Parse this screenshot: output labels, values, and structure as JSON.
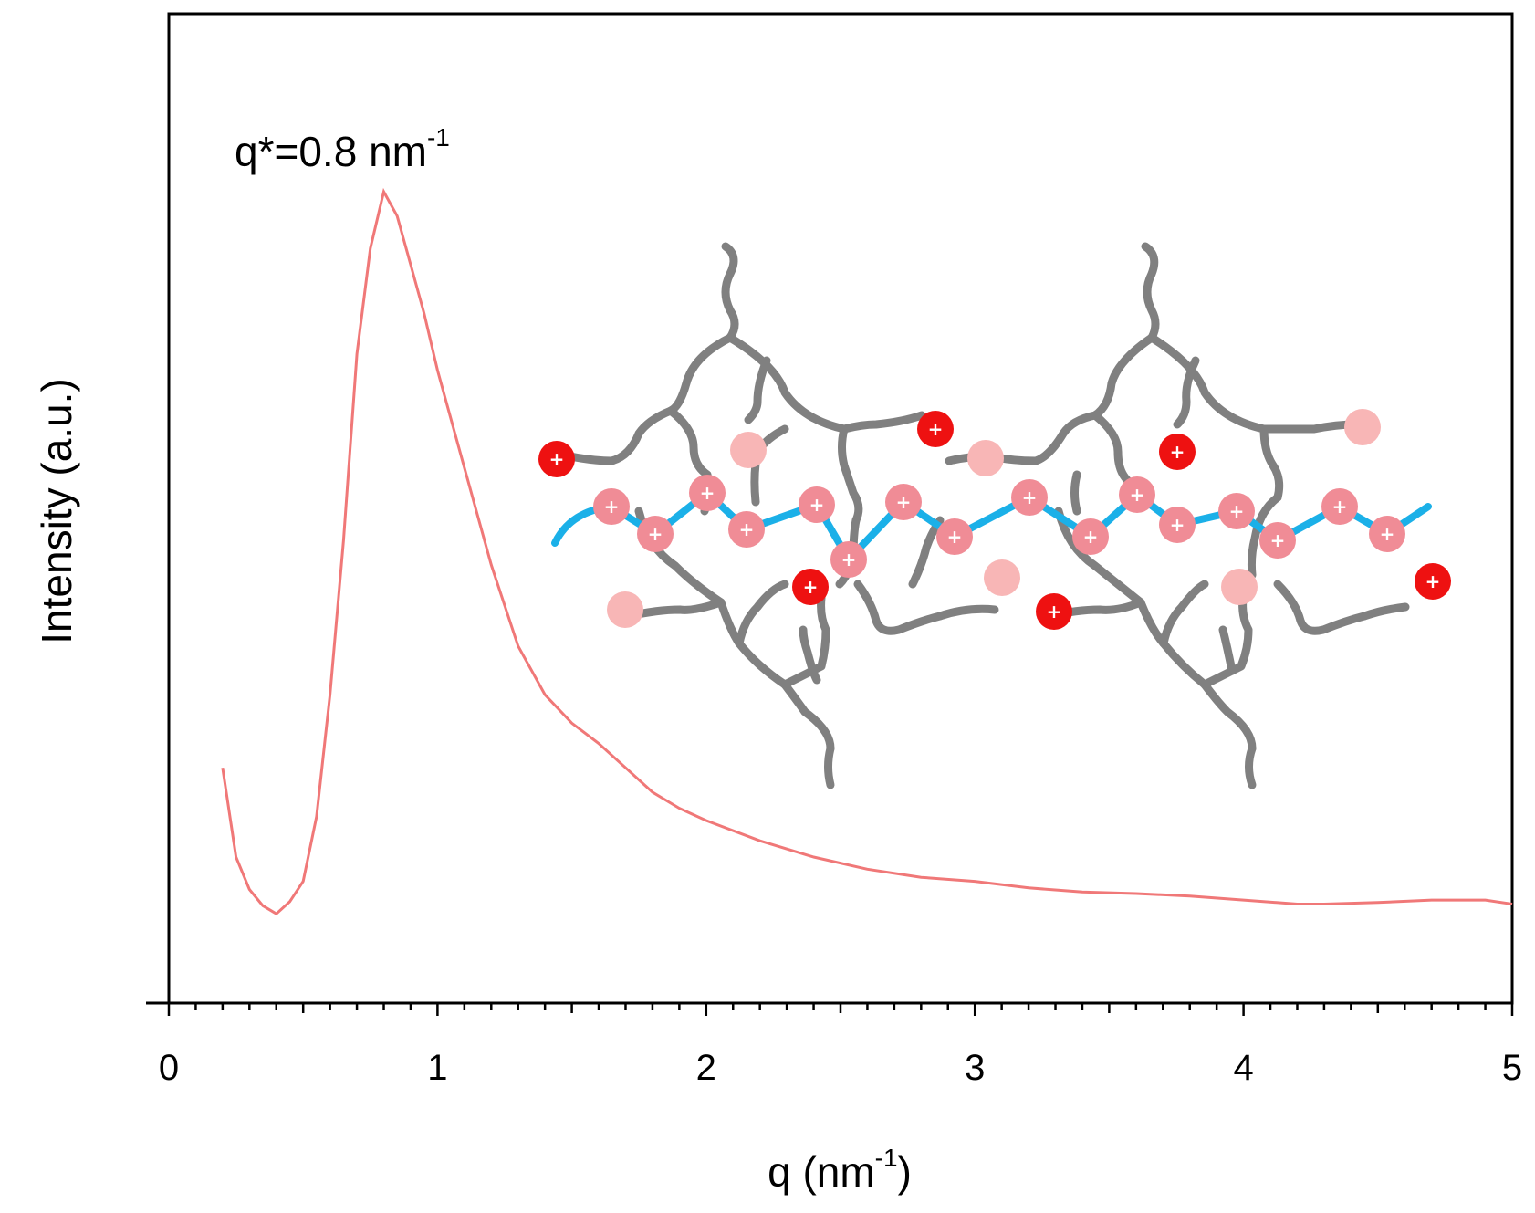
{
  "chart_data": {
    "type": "line",
    "xlabel": "q (nm",
    "xlabel_sup": "-1",
    "xlabel_suffix": ")",
    "ylabel": "Intensity (a.u.)",
    "xlim": [
      0,
      5
    ],
    "xticks": [
      "0",
      "1",
      "2",
      "3",
      "4",
      "5"
    ],
    "grid": false,
    "annotation": {
      "text": "q*=0.8 nm",
      "sup": "-1",
      "at_x": 0.8
    },
    "series": [
      {
        "color": "#f07878",
        "points": [
          [
            0.2,
            0.29
          ],
          [
            0.25,
            0.18
          ],
          [
            0.3,
            0.14
          ],
          [
            0.35,
            0.12
          ],
          [
            0.4,
            0.11
          ],
          [
            0.45,
            0.125
          ],
          [
            0.5,
            0.15
          ],
          [
            0.55,
            0.23
          ],
          [
            0.6,
            0.38
          ],
          [
            0.65,
            0.57
          ],
          [
            0.7,
            0.8
          ],
          [
            0.75,
            0.93
          ],
          [
            0.8,
            1.0
          ],
          [
            0.85,
            0.97
          ],
          [
            0.9,
            0.91
          ],
          [
            0.95,
            0.85
          ],
          [
            1.0,
            0.78
          ],
          [
            1.1,
            0.66
          ],
          [
            1.2,
            0.54
          ],
          [
            1.3,
            0.44
          ],
          [
            1.4,
            0.38
          ],
          [
            1.5,
            0.345
          ],
          [
            1.6,
            0.32
          ],
          [
            1.7,
            0.29
          ],
          [
            1.8,
            0.26
          ],
          [
            1.9,
            0.24
          ],
          [
            2.0,
            0.225
          ],
          [
            2.2,
            0.2
          ],
          [
            2.4,
            0.18
          ],
          [
            2.6,
            0.165
          ],
          [
            2.8,
            0.155
          ],
          [
            3.0,
            0.15
          ],
          [
            3.2,
            0.142
          ],
          [
            3.4,
            0.137
          ],
          [
            3.6,
            0.135
          ],
          [
            3.8,
            0.132
          ],
          [
            4.0,
            0.127
          ],
          [
            4.2,
            0.122
          ],
          [
            4.3,
            0.122
          ],
          [
            4.5,
            0.124
          ],
          [
            4.7,
            0.127
          ],
          [
            4.9,
            0.127
          ],
          [
            5.0,
            0.122
          ]
        ]
      }
    ]
  },
  "inset": {
    "colors": {
      "backbone": "#1bb0e8",
      "dendron": "#808080",
      "cation_bound": "#f08c96",
      "cation_free": "#ee1111",
      "counterion_faded": "#f8b6b6",
      "plus_sign": "#ffffff"
    },
    "plus_symbol": "+"
  }
}
